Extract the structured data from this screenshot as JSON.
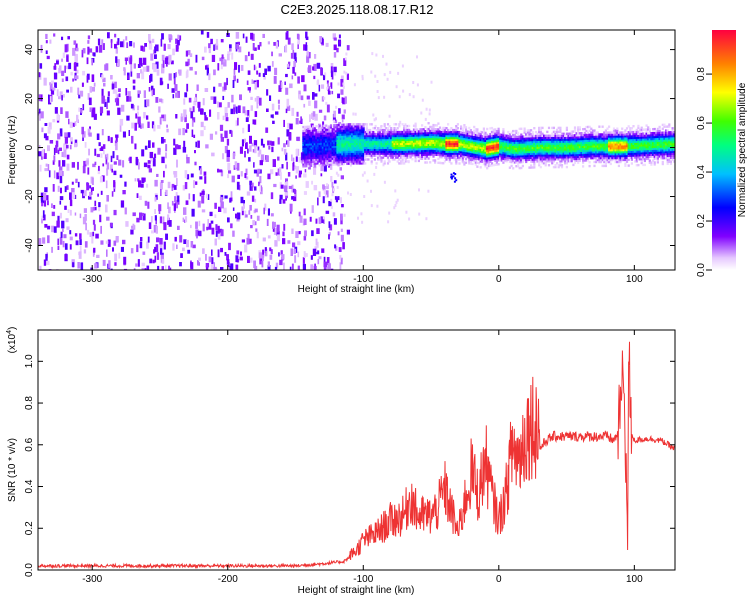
{
  "title": "C2E3.2025.118.08.17.R12",
  "chart_data": [
    {
      "type": "heatmap",
      "xlabel": "Height of straight line (km)",
      "ylabel": "Frequency (Hz)",
      "xlim": [
        -340,
        130
      ],
      "ylim": [
        -50,
        48
      ],
      "xticks": [
        -300,
        -200,
        -100,
        0,
        100
      ],
      "yticks": [
        -40,
        -20,
        0,
        20,
        40
      ],
      "colorbar": {
        "label": "Normalized spectral amplitude",
        "range": [
          0,
          0.98
        ],
        "ticks": [
          "0.0",
          "0.2",
          "0.4",
          "0.6",
          "0.8"
        ]
      },
      "description_values": {
        "noise_region_x": [
          -340,
          -120
        ],
        "signal_band_center_hz": [
          [
            -140,
            1
          ],
          [
            -110,
            2
          ],
          [
            -90,
            2
          ],
          [
            -70,
            2
          ],
          [
            -50,
            2.5
          ],
          [
            -40,
            2
          ],
          [
            -30,
            2
          ],
          [
            -20,
            1
          ],
          [
            -10,
            0
          ],
          [
            0,
            1
          ],
          [
            10,
            0
          ],
          [
            30,
            0.5
          ],
          [
            50,
            0.5
          ],
          [
            70,
            1
          ],
          [
            90,
            1
          ],
          [
            110,
            1.5
          ],
          [
            130,
            2
          ]
        ]
      }
    },
    {
      "type": "line",
      "xlabel": "Height of straight line (km)",
      "ylabel": "SNR (10 * v/v)",
      "yscale_label": "(x10",
      "yscale_exp": "4",
      "ylabel_close": ")",
      "xlim": [
        -340,
        130
      ],
      "ylim": [
        0,
        1.15
      ],
      "xticks": [
        -300,
        -200,
        -100,
        0,
        100
      ],
      "yticks": [
        "0.0",
        "0.2",
        "0.4",
        "0.6",
        "0.8",
        "1.0"
      ],
      "color": "#ee3333",
      "series": [
        {
          "x": [
            -340,
            -300,
            -250,
            -200,
            -150,
            -130,
            -115,
            -105,
            -100,
            -90,
            -80,
            -70,
            -65,
            -60,
            -50,
            -45,
            -40,
            -30,
            -25,
            -20,
            -15,
            -10,
            -5,
            0,
            5,
            10,
            15,
            20,
            25,
            30,
            35,
            40,
            50,
            60,
            70,
            80,
            85,
            88,
            90,
            92,
            94,
            95,
            96,
            97,
            100,
            110,
            120,
            130
          ],
          "y": [
            0.02,
            0.02,
            0.02,
            0.02,
            0.02,
            0.03,
            0.04,
            0.08,
            0.12,
            0.15,
            0.2,
            0.22,
            0.3,
            0.22,
            0.22,
            0.25,
            0.33,
            0.15,
            0.28,
            0.4,
            0.3,
            0.45,
            0.3,
            0.2,
            0.3,
            0.5,
            0.45,
            0.56,
            0.6,
            0.58,
            0.62,
            0.64,
            0.64,
            0.64,
            0.64,
            0.64,
            0.62,
            0.66,
            0.8,
            0.95,
            0.5,
            0.08,
            1.15,
            0.68,
            0.62,
            0.63,
            0.62,
            0.58
          ]
        }
      ]
    }
  ]
}
